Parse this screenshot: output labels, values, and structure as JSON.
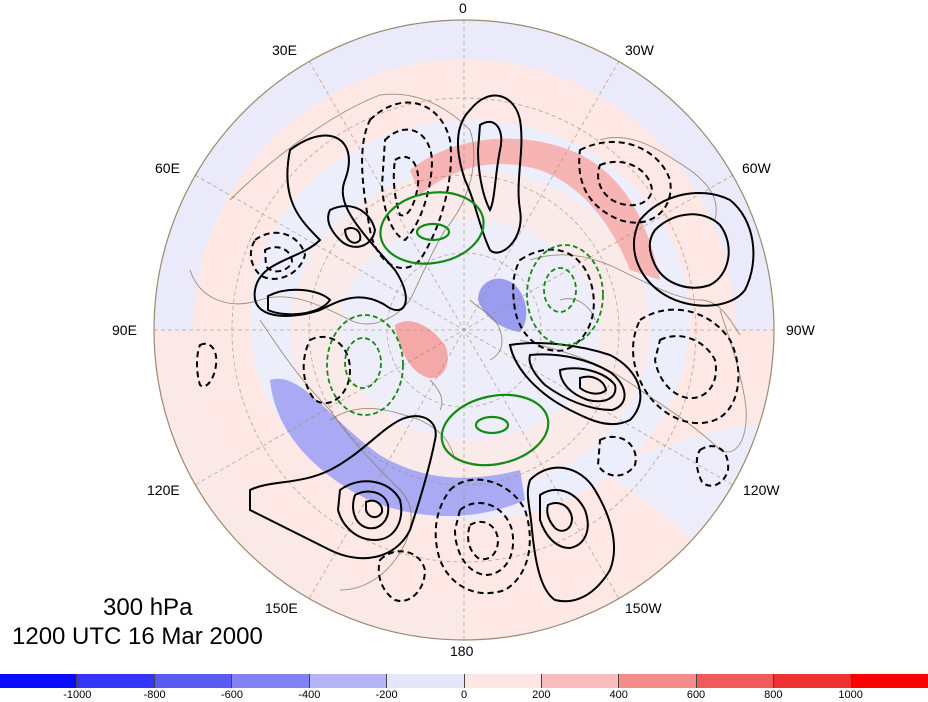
{
  "title": {
    "level": "300 hPa",
    "time": "1200 UTC 16 Mar 2000"
  },
  "map": {
    "projection": "polar stereographic (north)",
    "longitude_labels": {
      "top": "0",
      "top_left": "30E",
      "top_right": "30W",
      "upper_left": "60E",
      "upper_right": "60W",
      "left": "90E",
      "right": "90W",
      "lower_left": "120E",
      "lower_right": "120W",
      "bottom_left": "150E",
      "bottom_right": "150W",
      "bottom": "180"
    }
  },
  "colorbar": {
    "tick_labels": [
      "-1000",
      "-800",
      "-600",
      "-400",
      "-200",
      "0",
      "200",
      "400",
      "600",
      "800",
      "1000"
    ],
    "colors": [
      "#0a0aff",
      "#3434fa",
      "#5a5af4",
      "#8282f2",
      "#b4b4f6",
      "#e6e6fb",
      "#fde6e4",
      "#f8bcbc",
      "#f48c8c",
      "#f05a5a",
      "#ee3030",
      "#ff0000"
    ]
  },
  "contours": {
    "positive_style": "solid black",
    "negative_style": "dashed black",
    "overlay_style": "green (solid positive, dashed negative)"
  }
}
